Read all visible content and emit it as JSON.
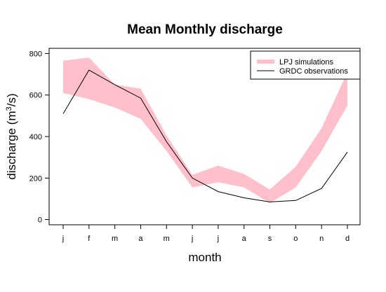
{
  "chart_data": {
    "type": "line",
    "title": "Mean Monthly discharge",
    "xlabel": "month",
    "ylabel": "discharge (m",
    "ylabel_sup": "3",
    "ylabel_suffix": "/s)",
    "categories": [
      "j",
      "f",
      "m",
      "a",
      "m",
      "j",
      "j",
      "a",
      "s",
      "o",
      "n",
      "d"
    ],
    "yticks": [
      "0",
      "200",
      "400",
      "600",
      "800"
    ],
    "ylim": [
      -25,
      825
    ],
    "grid": false,
    "legend_position": "top-right",
    "series": [
      {
        "name": "LPJ simulations",
        "kind": "band",
        "color": "#FFC0CB",
        "lower": [
          610,
          580,
          540,
          485,
          330,
          155,
          180,
          155,
          80,
          155,
          330,
          550
        ],
        "upper": [
          765,
          780,
          650,
          630,
          405,
          215,
          260,
          220,
          145,
          255,
          440,
          710
        ]
      },
      {
        "name": "GRDC observations",
        "kind": "line",
        "color": "#000000",
        "values": [
          510,
          720,
          650,
          585,
          375,
          200,
          135,
          105,
          85,
          92,
          150,
          325
        ]
      }
    ]
  }
}
